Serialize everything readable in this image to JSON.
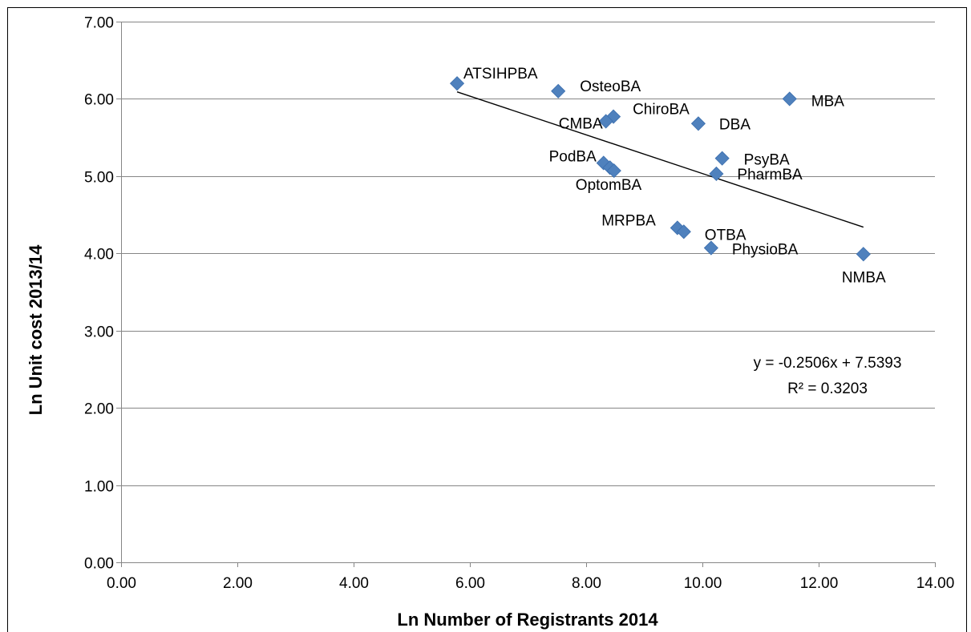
{
  "chart_data": {
    "type": "scatter",
    "title": "",
    "xlabel": "Ln Number of Registrants 2014",
    "ylabel": "Ln Unit cost 2013/14",
    "xlim": [
      0,
      14
    ],
    "ylim": [
      0,
      7
    ],
    "x_ticks": [
      "0.00",
      "2.00",
      "4.00",
      "6.00",
      "8.00",
      "10.00",
      "12.00",
      "14.00"
    ],
    "y_ticks": [
      "0.00",
      "1.00",
      "2.00",
      "3.00",
      "4.00",
      "5.00",
      "6.00",
      "7.00"
    ],
    "grid": "horizontal",
    "legend": "none",
    "marker_color": "#4F81BD",
    "points": [
      {
        "label": "ATSIHPBA",
        "x": 5.78,
        "y": 6.2
      },
      {
        "label": "OsteoBA",
        "x": 7.52,
        "y": 6.1
      },
      {
        "label": "MBA",
        "x": 11.5,
        "y": 6.0
      },
      {
        "label": "ChiroBA",
        "x": 8.47,
        "y": 5.77
      },
      {
        "label": "CMBA",
        "x": 8.34,
        "y": 5.71
      },
      {
        "label": "DBA",
        "x": 9.93,
        "y": 5.68
      },
      {
        "label": "PsyBA",
        "x": 10.34,
        "y": 5.23
      },
      {
        "label": "PodBA",
        "x": 8.3,
        "y": 5.17
      },
      {
        "label": "",
        "x": 8.41,
        "y": 5.11
      },
      {
        "label": "OptomBA",
        "x": 8.48,
        "y": 5.07
      },
      {
        "label": "PharmBA",
        "x": 10.24,
        "y": 5.03
      },
      {
        "label": "MRPBA",
        "x": 9.57,
        "y": 4.33
      },
      {
        "label": "OTBA",
        "x": 9.68,
        "y": 4.28
      },
      {
        "label": "PhysioBA",
        "x": 10.15,
        "y": 4.07
      },
      {
        "label": "NMBA",
        "x": 12.77,
        "y": 3.99
      }
    ],
    "trendline": {
      "type": "linear",
      "slope": -0.2506,
      "intercept": 7.5393,
      "x_range": [
        5.78,
        12.77
      ],
      "equation_label": "y = -0.2506x + 7.5393",
      "r2_label": "R² = 0.3203"
    }
  }
}
